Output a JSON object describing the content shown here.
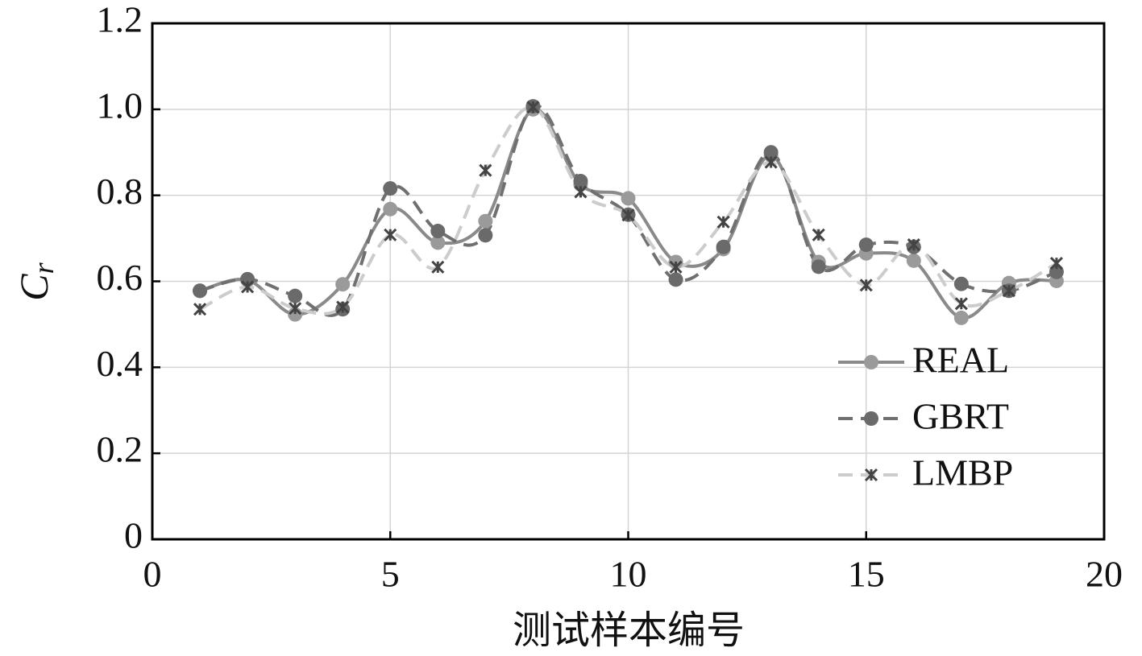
{
  "chart_data": {
    "type": "line",
    "xlabel": "测试样本编号",
    "ylabel": {
      "base": "C",
      "subscript": "r"
    },
    "x": [
      1,
      2,
      3,
      4,
      5,
      6,
      7,
      8,
      9,
      10,
      11,
      12,
      13,
      14,
      15,
      16,
      17,
      18,
      19
    ],
    "series": [
      {
        "name": "REAL",
        "color": "#8a8a8a",
        "marker_color": "#9a9a9a",
        "marker": "circle",
        "linestyle": "solid",
        "values": [
          0.578,
          0.603,
          0.523,
          0.593,
          0.768,
          0.69,
          0.74,
          1.0,
          0.825,
          0.793,
          0.645,
          0.675,
          0.893,
          0.645,
          0.665,
          0.648,
          0.515,
          0.596,
          0.601
        ]
      },
      {
        "name": "GBRT",
        "color": "#707070",
        "marker_color": "#6a6a6a",
        "marker": "circle",
        "linestyle": "dashed",
        "values": [
          0.578,
          0.605,
          0.566,
          0.535,
          0.816,
          0.717,
          0.707,
          1.007,
          0.833,
          0.755,
          0.604,
          0.68,
          0.9,
          0.634,
          0.685,
          0.68,
          0.594,
          0.578,
          0.622
        ]
      },
      {
        "name": "LMBP",
        "color": "#cccccc",
        "marker_color": "#444444",
        "marker": "x",
        "linestyle": "dashed",
        "values": [
          0.535,
          0.587,
          0.537,
          0.54,
          0.708,
          0.633,
          0.858,
          1.005,
          0.808,
          0.754,
          0.633,
          0.738,
          0.877,
          0.708,
          0.591,
          0.685,
          0.548,
          0.578,
          0.642
        ]
      }
    ],
    "xlim": [
      0,
      20
    ],
    "xticks": [
      0,
      5,
      10,
      15,
      20
    ],
    "ylim": [
      0,
      1.2
    ],
    "yticks": [
      0,
      0.2,
      0.4,
      0.6,
      0.8,
      {
        "value": 1,
        "label": "1.0"
      },
      1.2
    ],
    "grid": true,
    "legend": "lower right",
    "smooth": true
  }
}
